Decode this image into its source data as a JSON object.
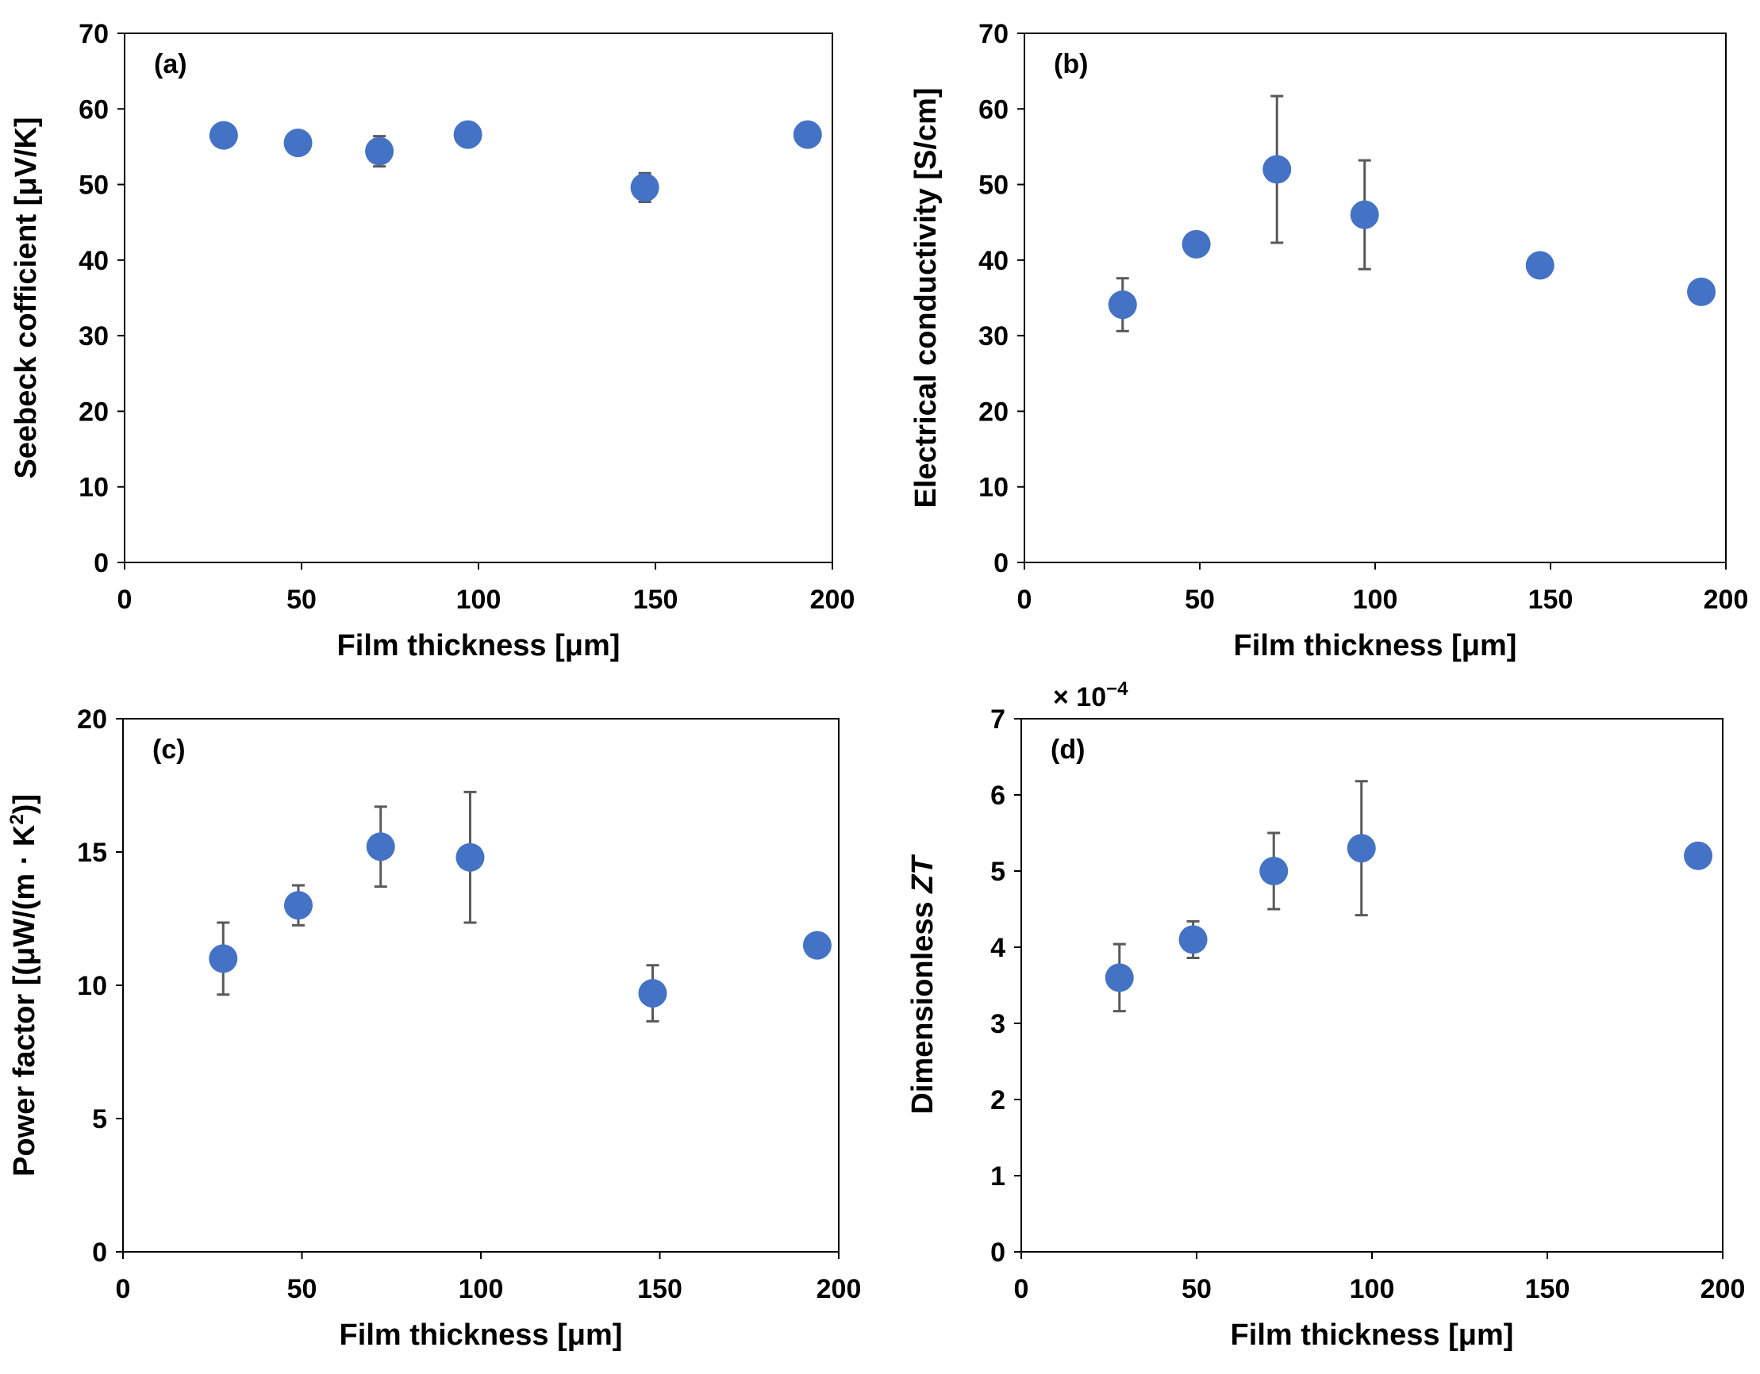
{
  "figure": {
    "marker_color": "#4472C4",
    "errorbar_color": "#595959",
    "text_color": "#000000"
  },
  "chart_data": [
    {
      "type": "scatter",
      "panel_label": "(a)",
      "xlabel": "Film thickness [μm]",
      "ylabel": "Seebeck cofficient [μV/K]",
      "xlim": [
        0,
        200
      ],
      "ylim": [
        0,
        70
      ],
      "xticks": [
        0,
        50,
        100,
        150,
        200
      ],
      "yticks": [
        0,
        10,
        20,
        30,
        40,
        50,
        60,
        70
      ],
      "grid": false,
      "series": [
        {
          "x": [
            28,
            49,
            72,
            97,
            147,
            193
          ],
          "y": [
            56.5,
            55.5,
            54.4,
            56.6,
            49.6,
            56.6
          ],
          "yerr": [
            0,
            0,
            2.0,
            0,
            1.9,
            0
          ]
        }
      ]
    },
    {
      "type": "scatter",
      "panel_label": "(b)",
      "xlabel": "Film thickness [μm]",
      "ylabel": "Electrical conductivity [S/cm]",
      "xlim": [
        0,
        200
      ],
      "ylim": [
        0,
        70
      ],
      "xticks": [
        0,
        50,
        100,
        150,
        200
      ],
      "yticks": [
        0,
        10,
        20,
        30,
        40,
        50,
        60,
        70
      ],
      "grid": false,
      "series": [
        {
          "x": [
            28,
            49,
            72,
            97,
            147,
            193
          ],
          "y": [
            34.1,
            42.1,
            52.0,
            46.0,
            39.3,
            35.8
          ],
          "yerr": [
            3.5,
            0,
            9.7,
            7.2,
            0,
            0
          ]
        }
      ]
    },
    {
      "type": "scatter",
      "panel_label": "(c)",
      "xlabel": "Film thickness [μm]",
      "ylabel_main": "Power factor [(μW/(m · K",
      "ylabel_sup": "2",
      "ylabel_end": ")]",
      "xlim": [
        0,
        200
      ],
      "ylim": [
        0,
        20
      ],
      "xticks": [
        0,
        50,
        100,
        150,
        200
      ],
      "yticks": [
        0,
        5,
        10,
        15,
        20
      ],
      "grid": false,
      "series": [
        {
          "x": [
            28,
            49,
            72,
            97,
            148,
            194
          ],
          "y": [
            11.0,
            13.0,
            15.2,
            14.8,
            9.7,
            11.5
          ],
          "yerr": [
            1.35,
            0.75,
            1.5,
            2.45,
            1.05,
            0
          ]
        }
      ]
    },
    {
      "type": "scatter",
      "panel_label": "(d)",
      "xlabel": "Film thickness [μm]",
      "ylabel_main": "Dimensionless ",
      "ylabel_italic": "ZT",
      "scale_text": "× 10",
      "scale_exp": "−4",
      "xlim": [
        0,
        200
      ],
      "ylim": [
        0,
        7
      ],
      "xticks": [
        0,
        50,
        100,
        150,
        200
      ],
      "yticks": [
        0,
        1,
        2,
        3,
        4,
        5,
        6,
        7
      ],
      "grid": false,
      "series": [
        {
          "x": [
            28,
            49,
            72,
            97,
            193
          ],
          "y": [
            3.6,
            4.1,
            5.0,
            5.3,
            5.2
          ],
          "yerr": [
            0.44,
            0.24,
            0.5,
            0.88,
            0
          ]
        }
      ]
    }
  ]
}
